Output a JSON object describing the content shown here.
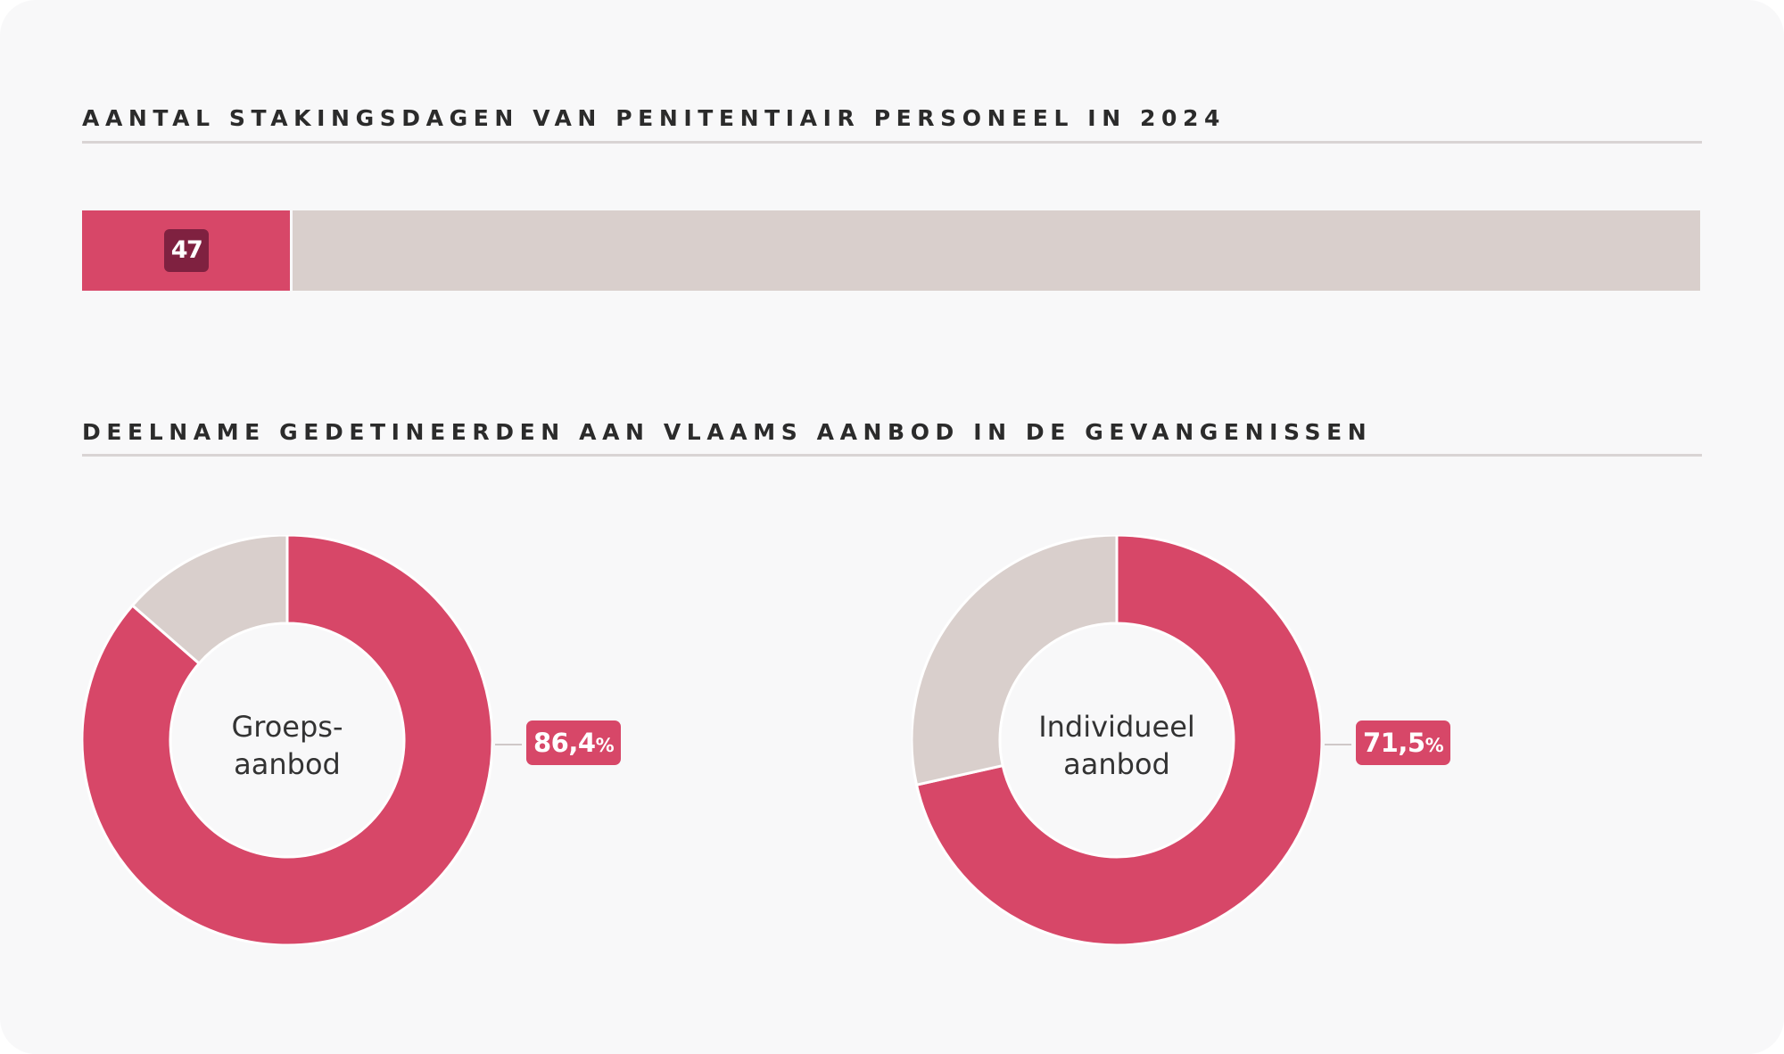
{
  "colors": {
    "accent": "#d74768",
    "track": "#d9cfcc",
    "badge_dark": "#7f2140",
    "rule": "#d9d4d4",
    "background": "#f8f8f9"
  },
  "sections": {
    "strike_title": "AANTAL STAKINGSDAGEN VAN PENITENTIAIR PERSONEEL IN 2024",
    "participation_title": "DEELNAME GEDETINEERDEN AAN VLAAMS AANBOD IN DE GEVANGENISSEN"
  },
  "chart_data": [
    {
      "type": "bar",
      "orientation": "horizontal",
      "title": "AANTAL STAKINGSDAGEN VAN PENITENTIAIR PERSONEEL IN 2024",
      "value": 47,
      "value_label": "47",
      "total": 366
    },
    {
      "type": "pie",
      "variant": "donut",
      "center_label": [
        "Groeps-",
        "aanbod"
      ],
      "value": 86.4,
      "value_label": "86,4",
      "unit": "%",
      "slices": [
        86.4,
        13.6
      ]
    },
    {
      "type": "pie",
      "variant": "donut",
      "center_label": [
        "Individueel",
        "aanbod"
      ],
      "value": 71.5,
      "value_label": "71,5",
      "unit": "%",
      "slices": [
        71.5,
        28.5
      ]
    }
  ]
}
